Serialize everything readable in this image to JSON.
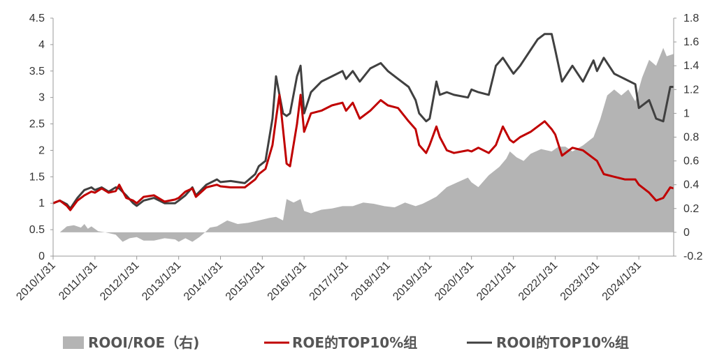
{
  "chart_data": {
    "type": "line",
    "x_start": "2010/1/31",
    "x_end": "2024/11/30",
    "left_axis": {
      "min": 0,
      "max": 4.5,
      "step": 0.5,
      "ticks": [
        "0",
        "0.5",
        "1",
        "1.5",
        "2",
        "2.5",
        "3",
        "3.5",
        "4",
        "4.5"
      ]
    },
    "right_axis": {
      "min": -0.2,
      "max": 1.8,
      "step": 0.2,
      "ticks": [
        "-0.2",
        "0",
        "0.2",
        "0.4",
        "0.6",
        "0.8",
        "1",
        "1.2",
        "1.4",
        "1.6",
        "1.8"
      ]
    },
    "x_ticks": [
      "2010/1/31",
      "2011/1/31",
      "2012/1/31",
      "2013/1/31",
      "2014/1/31",
      "2015/1/31",
      "2016/1/31",
      "2017/1/31",
      "2018/1/31",
      "2019/1/31",
      "2020/1/31",
      "2021/1/31",
      "2022/1/31",
      "2023/1/31",
      "2024/1/31"
    ],
    "colors": {
      "area": "#b4b4b4",
      "roe": "#c00000",
      "rooi": "#404040"
    },
    "legend": [
      {
        "label": "ROOI/ROE（右)",
        "kind": "area"
      },
      {
        "label": "ROE的TOP10%组",
        "kind": "roe"
      },
      {
        "label": "ROOI的TOP10%组",
        "kind": "rooi"
      }
    ],
    "series": [
      {
        "key": "roe",
        "axis": "left",
        "points": [
          [
            "2010/1/31",
            1.0
          ],
          [
            "2010/3/31",
            1.05
          ],
          [
            "2010/5/31",
            0.95
          ],
          [
            "2010/6/30",
            0.87
          ],
          [
            "2010/8/31",
            1.05
          ],
          [
            "2010/10/31",
            1.15
          ],
          [
            "2010/12/31",
            1.22
          ],
          [
            "2011/1/31",
            1.2
          ],
          [
            "2011/3/31",
            1.28
          ],
          [
            "2011/5/31",
            1.2
          ],
          [
            "2011/7/31",
            1.23
          ],
          [
            "2011/8/31",
            1.35
          ],
          [
            "2011/10/31",
            1.1
          ],
          [
            "2011/12/31",
            1.05
          ],
          [
            "2012/1/31",
            1.0
          ],
          [
            "2012/3/31",
            1.12
          ],
          [
            "2012/6/30",
            1.15
          ],
          [
            "2012/9/30",
            1.03
          ],
          [
            "2012/12/31",
            1.07
          ],
          [
            "2013/1/31",
            1.1
          ],
          [
            "2013/3/31",
            1.22
          ],
          [
            "2013/5/31",
            1.28
          ],
          [
            "2013/6/30",
            1.12
          ],
          [
            "2013/9/30",
            1.3
          ],
          [
            "2013/12/31",
            1.35
          ],
          [
            "2014/1/31",
            1.32
          ],
          [
            "2014/4/30",
            1.3
          ],
          [
            "2014/8/31",
            1.3
          ],
          [
            "2014/11/30",
            1.45
          ],
          [
            "2014/12/31",
            1.55
          ],
          [
            "2015/2/28",
            1.65
          ],
          [
            "2015/4/30",
            2.1
          ],
          [
            "2015/5/31",
            2.6
          ],
          [
            "2015/6/30",
            3.05
          ],
          [
            "2015/7/31",
            2.4
          ],
          [
            "2015/8/31",
            1.75
          ],
          [
            "2015/9/30",
            1.7
          ],
          [
            "2015/11/30",
            2.5
          ],
          [
            "2015/12/31",
            3.05
          ],
          [
            "2016/1/31",
            2.35
          ],
          [
            "2016/3/31",
            2.7
          ],
          [
            "2016/6/30",
            2.75
          ],
          [
            "2016/9/30",
            2.85
          ],
          [
            "2016/12/31",
            2.9
          ],
          [
            "2017/1/31",
            2.75
          ],
          [
            "2017/3/31",
            2.9
          ],
          [
            "2017/5/31",
            2.6
          ],
          [
            "2017/8/31",
            2.75
          ],
          [
            "2017/11/30",
            2.95
          ],
          [
            "2018/1/31",
            2.85
          ],
          [
            "2018/4/30",
            2.8
          ],
          [
            "2018/7/31",
            2.55
          ],
          [
            "2018/9/30",
            2.4
          ],
          [
            "2018/10/31",
            2.1
          ],
          [
            "2018/12/31",
            1.95
          ],
          [
            "2019/1/31",
            2.1
          ],
          [
            "2019/3/31",
            2.45
          ],
          [
            "2019/4/30",
            2.25
          ],
          [
            "2019/6/30",
            2.0
          ],
          [
            "2019/8/31",
            1.95
          ],
          [
            "2019/12/31",
            2.0
          ],
          [
            "2020/1/31",
            1.98
          ],
          [
            "2020/3/31",
            2.05
          ],
          [
            "2020/6/30",
            1.95
          ],
          [
            "2020/8/31",
            2.1
          ],
          [
            "2020/10/31",
            2.45
          ],
          [
            "2020/12/31",
            2.2
          ],
          [
            "2021/1/31",
            2.15
          ],
          [
            "2021/3/31",
            2.25
          ],
          [
            "2021/6/30",
            2.35
          ],
          [
            "2021/8/31",
            2.45
          ],
          [
            "2021/10/31",
            2.55
          ],
          [
            "2021/12/31",
            2.4
          ],
          [
            "2022/1/31",
            2.3
          ],
          [
            "2022/3/31",
            1.9
          ],
          [
            "2022/6/30",
            2.05
          ],
          [
            "2022/9/30",
            2.0
          ],
          [
            "2022/12/31",
            1.85
          ],
          [
            "2023/1/31",
            1.8
          ],
          [
            "2023/3/31",
            1.55
          ],
          [
            "2023/6/30",
            1.5
          ],
          [
            "2023/9/30",
            1.45
          ],
          [
            "2023/12/31",
            1.45
          ],
          [
            "2024/1/31",
            1.35
          ],
          [
            "2024/4/30",
            1.2
          ],
          [
            "2024/6/30",
            1.05
          ],
          [
            "2024/8/31",
            1.1
          ],
          [
            "2024/10/31",
            1.3
          ],
          [
            "2024/11/30",
            1.28
          ]
        ]
      },
      {
        "key": "rooi",
        "axis": "left",
        "points": [
          [
            "2010/1/31",
            1.0
          ],
          [
            "2010/3/31",
            1.05
          ],
          [
            "2010/5/31",
            0.98
          ],
          [
            "2010/6/30",
            0.9
          ],
          [
            "2010/8/31",
            1.1
          ],
          [
            "2010/10/31",
            1.25
          ],
          [
            "2010/12/31",
            1.3
          ],
          [
            "2011/1/31",
            1.25
          ],
          [
            "2011/3/31",
            1.3
          ],
          [
            "2011/5/31",
            1.22
          ],
          [
            "2011/7/31",
            1.3
          ],
          [
            "2011/8/31",
            1.28
          ],
          [
            "2011/10/31",
            1.15
          ],
          [
            "2011/12/31",
            1.0
          ],
          [
            "2012/1/31",
            0.95
          ],
          [
            "2012/3/31",
            1.05
          ],
          [
            "2012/6/30",
            1.1
          ],
          [
            "2012/9/30",
            1.0
          ],
          [
            "2012/12/31",
            1.0
          ],
          [
            "2013/1/31",
            1.05
          ],
          [
            "2013/3/31",
            1.15
          ],
          [
            "2013/5/31",
            1.3
          ],
          [
            "2013/6/30",
            1.15
          ],
          [
            "2013/9/30",
            1.35
          ],
          [
            "2013/12/31",
            1.45
          ],
          [
            "2014/1/31",
            1.4
          ],
          [
            "2014/4/30",
            1.42
          ],
          [
            "2014/8/31",
            1.38
          ],
          [
            "2014/11/30",
            1.55
          ],
          [
            "2014/12/31",
            1.7
          ],
          [
            "2015/2/28",
            1.8
          ],
          [
            "2015/4/30",
            2.6
          ],
          [
            "2015/5/31",
            3.4
          ],
          [
            "2015/6/30",
            3.05
          ],
          [
            "2015/7/31",
            2.7
          ],
          [
            "2015/8/31",
            2.65
          ],
          [
            "2015/9/30",
            2.7
          ],
          [
            "2015/11/30",
            3.4
          ],
          [
            "2015/12/31",
            3.6
          ],
          [
            "2016/1/31",
            2.7
          ],
          [
            "2016/3/31",
            3.1
          ],
          [
            "2016/6/30",
            3.3
          ],
          [
            "2016/9/30",
            3.4
          ],
          [
            "2016/12/31",
            3.5
          ],
          [
            "2017/1/31",
            3.35
          ],
          [
            "2017/3/31",
            3.5
          ],
          [
            "2017/5/31",
            3.3
          ],
          [
            "2017/8/31",
            3.55
          ],
          [
            "2017/11/30",
            3.65
          ],
          [
            "2018/1/31",
            3.5
          ],
          [
            "2018/4/30",
            3.35
          ],
          [
            "2018/7/31",
            3.2
          ],
          [
            "2018/9/30",
            2.95
          ],
          [
            "2018/10/31",
            2.7
          ],
          [
            "2018/12/31",
            2.55
          ],
          [
            "2019/1/31",
            2.6
          ],
          [
            "2019/3/31",
            3.3
          ],
          [
            "2019/4/30",
            3.05
          ],
          [
            "2019/6/30",
            3.1
          ],
          [
            "2019/8/31",
            3.05
          ],
          [
            "2019/12/31",
            3.0
          ],
          [
            "2020/1/31",
            3.15
          ],
          [
            "2020/3/31",
            3.1
          ],
          [
            "2020/6/30",
            3.05
          ],
          [
            "2020/8/31",
            3.6
          ],
          [
            "2020/10/31",
            3.75
          ],
          [
            "2020/12/31",
            3.55
          ],
          [
            "2021/1/31",
            3.45
          ],
          [
            "2021/3/31",
            3.6
          ],
          [
            "2021/6/30",
            3.9
          ],
          [
            "2021/8/31",
            4.1
          ],
          [
            "2021/10/31",
            4.2
          ],
          [
            "2021/12/31",
            4.2
          ],
          [
            "2022/1/31",
            3.9
          ],
          [
            "2022/3/31",
            3.3
          ],
          [
            "2022/6/30",
            3.6
          ],
          [
            "2022/9/30",
            3.3
          ],
          [
            "2022/12/31",
            3.7
          ],
          [
            "2023/1/31",
            3.5
          ],
          [
            "2023/3/31",
            3.75
          ],
          [
            "2023/6/30",
            3.45
          ],
          [
            "2023/9/30",
            3.35
          ],
          [
            "2023/12/31",
            3.25
          ],
          [
            "2024/1/31",
            2.8
          ],
          [
            "2024/4/30",
            2.95
          ],
          [
            "2024/6/30",
            2.6
          ],
          [
            "2024/8/31",
            2.55
          ],
          [
            "2024/10/31",
            3.2
          ],
          [
            "2024/11/30",
            3.2
          ]
        ]
      },
      {
        "key": "area",
        "axis": "right",
        "points": [
          [
            "2010/1/31",
            0.0
          ],
          [
            "2010/3/31",
            0.0
          ],
          [
            "2010/5/31",
            0.05
          ],
          [
            "2010/7/31",
            0.06
          ],
          [
            "2010/9/31",
            0.04
          ],
          [
            "2010/10/31",
            0.07
          ],
          [
            "2010/11/30",
            0.03
          ],
          [
            "2010/12/31",
            0.05
          ],
          [
            "2011/2/28",
            0.01
          ],
          [
            "2011/4/30",
            0.0
          ],
          [
            "2011/7/31",
            -0.02
          ],
          [
            "2011/9/30",
            -0.08
          ],
          [
            "2011/11/30",
            -0.05
          ],
          [
            "2012/1/31",
            -0.04
          ],
          [
            "2012/3/31",
            -0.07
          ],
          [
            "2012/6/30",
            -0.07
          ],
          [
            "2012/9/30",
            -0.05
          ],
          [
            "2012/12/31",
            -0.06
          ],
          [
            "2013/1/31",
            -0.08
          ],
          [
            "2013/3/31",
            -0.05
          ],
          [
            "2013/5/31",
            -0.08
          ],
          [
            "2013/7/31",
            -0.04
          ],
          [
            "2013/9/30",
            0.01
          ],
          [
            "2013/10/31",
            0.04
          ],
          [
            "2013/12/31",
            0.05
          ],
          [
            "2014/3/31",
            0.1
          ],
          [
            "2014/6/30",
            0.07
          ],
          [
            "2014/9/30",
            0.08
          ],
          [
            "2014/12/31",
            0.1
          ],
          [
            "2015/3/31",
            0.12
          ],
          [
            "2015/5/31",
            0.13
          ],
          [
            "2015/7/31",
            0.1
          ],
          [
            "2015/8/31",
            0.28
          ],
          [
            "2015/10/31",
            0.25
          ],
          [
            "2015/12/31",
            0.28
          ],
          [
            "2016/1/31",
            0.18
          ],
          [
            "2016/3/31",
            0.16
          ],
          [
            "2016/6/30",
            0.19
          ],
          [
            "2016/9/30",
            0.2
          ],
          [
            "2016/12/31",
            0.22
          ],
          [
            "2017/3/31",
            0.22
          ],
          [
            "2017/6/30",
            0.25
          ],
          [
            "2017/9/30",
            0.24
          ],
          [
            "2017/12/31",
            0.22
          ],
          [
            "2018/3/31",
            0.21
          ],
          [
            "2018/6/30",
            0.25
          ],
          [
            "2018/9/30",
            0.22
          ],
          [
            "2018/11/30",
            0.24
          ],
          [
            "2019/1/31",
            0.27
          ],
          [
            "2019/3/31",
            0.3
          ],
          [
            "2019/6/30",
            0.38
          ],
          [
            "2019/9/30",
            0.42
          ],
          [
            "2019/12/31",
            0.46
          ],
          [
            "2020/1/31",
            0.42
          ],
          [
            "2020/3/31",
            0.38
          ],
          [
            "2020/6/30",
            0.48
          ],
          [
            "2020/9/30",
            0.55
          ],
          [
            "2020/11/30",
            0.62
          ],
          [
            "2020/12/31",
            0.68
          ],
          [
            "2021/2/28",
            0.63
          ],
          [
            "2021/4/30",
            0.6
          ],
          [
            "2021/6/30",
            0.66
          ],
          [
            "2021/9/30",
            0.7
          ],
          [
            "2021/12/31",
            0.68
          ],
          [
            "2022/2/28",
            0.72
          ],
          [
            "2022/4/30",
            0.72
          ],
          [
            "2022/6/30",
            0.68
          ],
          [
            "2022/9/30",
            0.73
          ],
          [
            "2022/12/31",
            0.8
          ],
          [
            "2023/2/28",
            0.95
          ],
          [
            "2023/4/30",
            1.15
          ],
          [
            "2023/6/30",
            1.2
          ],
          [
            "2023/8/31",
            1.15
          ],
          [
            "2023/10/31",
            1.2
          ],
          [
            "2023/12/31",
            1.1
          ],
          [
            "2024/2/28",
            1.3
          ],
          [
            "2024/4/30",
            1.45
          ],
          [
            "2024/6/30",
            1.4
          ],
          [
            "2024/8/31",
            1.55
          ],
          [
            "2024/9/30",
            1.48
          ],
          [
            "2024/11/30",
            1.5
          ]
        ]
      }
    ]
  }
}
